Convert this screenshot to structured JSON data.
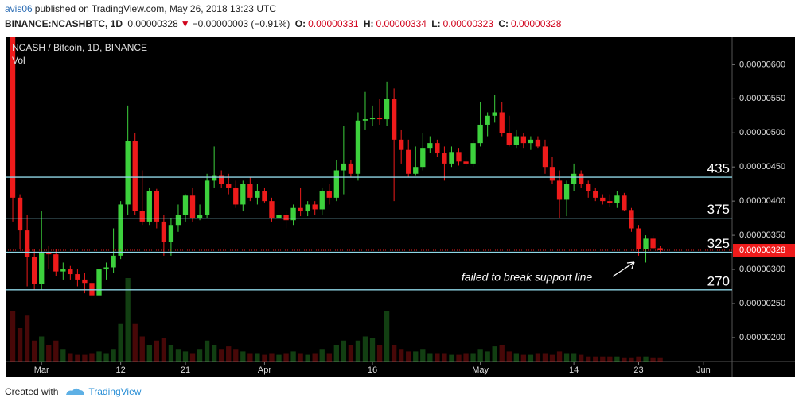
{
  "header": {
    "author": "avis06",
    "published": "published on TradingView.com, May 26, 2018 13:23 UTC",
    "symbol": "BINANCE:NCASHBTC, 1D",
    "last": "0.00000328",
    "arrow": "▼",
    "change": "−0.00000003 (−0.91%)",
    "open_label": "O:",
    "open": "0.00000331",
    "high_label": "H:",
    "high": "0.00000334",
    "low_label": "L:",
    "low": "0.00000323",
    "close_label": "C:",
    "close": "0.00000328"
  },
  "footer": {
    "created": "Created with",
    "brand": "TradingView"
  },
  "chart_data": {
    "type": "candlestick",
    "title": "NCASH / Bitcoin, 1D, BINANCE",
    "volume_label": "Vol",
    "last_price_label": "0.00000328",
    "annotation": "failed to break support line",
    "up_color": "#3dd13d",
    "down_color": "#ee1b1b",
    "level_color": "#8fd6e6",
    "grid": false,
    "ylim": [
      1.65e-06,
      6.4e-06
    ],
    "yticks": [
      {
        "value": 2e-06,
        "label": "0.00000200"
      },
      {
        "value": 2.5e-06,
        "label": "0.00000250"
      },
      {
        "value": 3e-06,
        "label": "0.00000300"
      },
      {
        "value": 3.5e-06,
        "label": "0.00000350"
      },
      {
        "value": 4e-06,
        "label": "0.00000400"
      },
      {
        "value": 4.5e-06,
        "label": "0.00000450"
      },
      {
        "value": 5e-06,
        "label": "0.00000500"
      },
      {
        "value": 5.5e-06,
        "label": "0.00000550"
      },
      {
        "value": 6e-06,
        "label": "0.00000600"
      }
    ],
    "xlim": [
      "2018-02-24",
      "2018-06-05"
    ],
    "xticks": [
      {
        "value": "2018-03-01",
        "label": "Mar"
      },
      {
        "value": "2018-03-12",
        "label": "12"
      },
      {
        "value": "2018-03-21",
        "label": "21"
      },
      {
        "value": "2018-04-01",
        "label": "Apr"
      },
      {
        "value": "2018-04-16",
        "label": "16"
      },
      {
        "value": "2018-05-01",
        "label": "May"
      },
      {
        "value": "2018-05-14",
        "label": "14"
      },
      {
        "value": "2018-05-23",
        "label": "23"
      },
      {
        "value": "2018-06-01",
        "label": "Jun"
      }
    ],
    "levels": [
      {
        "value": 4.35e-06,
        "label": "435"
      },
      {
        "value": 3.75e-06,
        "label": "375"
      },
      {
        "value": 3.25e-06,
        "label": "325"
      },
      {
        "value": 2.7e-06,
        "label": "270"
      }
    ],
    "candles": [
      {
        "date": "2018-02-25",
        "open": 6.4e-06,
        "high": 6.4e-06,
        "low": 3.7e-06,
        "close": 4.05e-06,
        "volume": 60
      },
      {
        "date": "2018-02-26",
        "open": 4.05e-06,
        "high": 4.1e-06,
        "low": 3.3e-06,
        "close": 3.57e-06,
        "volume": 40
      },
      {
        "date": "2018-02-27",
        "open": 3.57e-06,
        "high": 3.8e-06,
        "low": 2.75e-06,
        "close": 3.18e-06,
        "volume": 55
      },
      {
        "date": "2018-02-28",
        "open": 3.18e-06,
        "high": 3.3e-06,
        "low": 2.7e-06,
        "close": 2.78e-06,
        "volume": 25
      },
      {
        "date": "2018-03-01",
        "open": 2.78e-06,
        "high": 3.85e-06,
        "low": 2.7e-06,
        "close": 3.25e-06,
        "volume": 30
      },
      {
        "date": "2018-03-02",
        "open": 3.25e-06,
        "high": 3.35e-06,
        "low": 3e-06,
        "close": 3.22e-06,
        "volume": 20
      },
      {
        "date": "2018-03-03",
        "open": 3.22e-06,
        "high": 3.3e-06,
        "low": 2.9e-06,
        "close": 2.97e-06,
        "volume": 25
      },
      {
        "date": "2018-03-04",
        "open": 2.97e-06,
        "high": 3.1e-06,
        "low": 2.85e-06,
        "close": 3e-06,
        "volume": 15
      },
      {
        "date": "2018-03-05",
        "open": 3e-06,
        "high": 3.05e-06,
        "low": 2.85e-06,
        "close": 2.93e-06,
        "volume": 10
      },
      {
        "date": "2018-03-06",
        "open": 2.93e-06,
        "high": 3e-06,
        "low": 2.75e-06,
        "close": 2.85e-06,
        "volume": 8
      },
      {
        "date": "2018-03-07",
        "open": 2.85e-06,
        "high": 2.95e-06,
        "low": 2.65e-06,
        "close": 2.8e-06,
        "volume": 8
      },
      {
        "date": "2018-03-08",
        "open": 2.8e-06,
        "high": 2.9e-06,
        "low": 2.55e-06,
        "close": 2.62e-06,
        "volume": 10
      },
      {
        "date": "2018-03-09",
        "open": 2.62e-06,
        "high": 3.05e-06,
        "low": 2.45e-06,
        "close": 3e-06,
        "volume": 12
      },
      {
        "date": "2018-03-10",
        "open": 3e-06,
        "high": 3.1e-06,
        "low": 2.85e-06,
        "close": 3.03e-06,
        "volume": 10
      },
      {
        "date": "2018-03-11",
        "open": 3.03e-06,
        "high": 3.6e-06,
        "low": 2.95e-06,
        "close": 3.2e-06,
        "volume": 15
      },
      {
        "date": "2018-03-12",
        "open": 3.2e-06,
        "high": 4e-06,
        "low": 3.15e-06,
        "close": 3.95e-06,
        "volume": 45
      },
      {
        "date": "2018-03-13",
        "open": 3.95e-06,
        "high": 5.4e-06,
        "low": 3.8e-06,
        "close": 4.88e-06,
        "volume": 100
      },
      {
        "date": "2018-03-14",
        "open": 4.88e-06,
        "high": 5e-06,
        "low": 3.8e-06,
        "close": 3.86e-06,
        "volume": 45
      },
      {
        "date": "2018-03-15",
        "open": 3.86e-06,
        "high": 4.45e-06,
        "low": 3.65e-06,
        "close": 3.7e-06,
        "volume": 30
      },
      {
        "date": "2018-03-16",
        "open": 3.7e-06,
        "high": 4.2e-06,
        "low": 3.65e-06,
        "close": 4.15e-06,
        "volume": 20
      },
      {
        "date": "2018-03-17",
        "open": 4.15e-06,
        "high": 4.18e-06,
        "low": 3.6e-06,
        "close": 3.7e-06,
        "volume": 25
      },
      {
        "date": "2018-03-18",
        "open": 3.7e-06,
        "high": 3.8e-06,
        "low": 3.2e-06,
        "close": 3.4e-06,
        "volume": 28
      },
      {
        "date": "2018-03-19",
        "open": 3.4e-06,
        "high": 3.75e-06,
        "low": 3.2e-06,
        "close": 3.65e-06,
        "volume": 20
      },
      {
        "date": "2018-03-20",
        "open": 3.65e-06,
        "high": 3.95e-06,
        "low": 3.55e-06,
        "close": 3.8e-06,
        "volume": 15
      },
      {
        "date": "2018-03-21",
        "open": 3.8e-06,
        "high": 4.1e-06,
        "low": 3.7e-06,
        "close": 4.08e-06,
        "volume": 12
      },
      {
        "date": "2018-03-22",
        "open": 4.08e-06,
        "high": 4.2e-06,
        "low": 3.7e-06,
        "close": 3.75e-06,
        "volume": 10
      },
      {
        "date": "2018-03-23",
        "open": 3.75e-06,
        "high": 3.95e-06,
        "low": 3.72e-06,
        "close": 3.8e-06,
        "volume": 15
      },
      {
        "date": "2018-03-24",
        "open": 3.8e-06,
        "high": 4.4e-06,
        "low": 3.75e-06,
        "close": 4.3e-06,
        "volume": 25
      },
      {
        "date": "2018-03-25",
        "open": 4.3e-06,
        "high": 4.8e-06,
        "low": 4.2e-06,
        "close": 4.38e-06,
        "volume": 20
      },
      {
        "date": "2018-03-26",
        "open": 4.38e-06,
        "high": 4.45e-06,
        "low": 4.2e-06,
        "close": 4.25e-06,
        "volume": 15
      },
      {
        "date": "2018-03-27",
        "open": 4.25e-06,
        "high": 4.4e-06,
        "low": 4.1e-06,
        "close": 4.2e-06,
        "volume": 18
      },
      {
        "date": "2018-03-28",
        "open": 4.2e-06,
        "high": 4.3e-06,
        "low": 3.9e-06,
        "close": 3.95e-06,
        "volume": 15
      },
      {
        "date": "2018-03-29",
        "open": 3.95e-06,
        "high": 4.3e-06,
        "low": 3.85e-06,
        "close": 4.25e-06,
        "volume": 12
      },
      {
        "date": "2018-03-30",
        "open": 4.25e-06,
        "high": 4.35e-06,
        "low": 4e-06,
        "close": 4.05e-06,
        "volume": 10
      },
      {
        "date": "2018-03-31",
        "open": 4.05e-06,
        "high": 4.25e-06,
        "low": 3.95e-06,
        "close": 4.15e-06,
        "volume": 10
      },
      {
        "date": "2018-04-01",
        "open": 4.15e-06,
        "high": 4.2e-06,
        "low": 3.98e-06,
        "close": 4e-06,
        "volume": 8
      },
      {
        "date": "2018-04-02",
        "open": 4e-06,
        "high": 4.05e-06,
        "low": 3.7e-06,
        "close": 3.75e-06,
        "volume": 10
      },
      {
        "date": "2018-04-03",
        "open": 3.75e-06,
        "high": 3.9e-06,
        "low": 3.7e-06,
        "close": 3.8e-06,
        "volume": 8
      },
      {
        "date": "2018-04-04",
        "open": 3.8e-06,
        "high": 3.85e-06,
        "low": 3.6e-06,
        "close": 3.72e-06,
        "volume": 10
      },
      {
        "date": "2018-04-05",
        "open": 3.72e-06,
        "high": 3.95e-06,
        "low": 3.65e-06,
        "close": 3.9e-06,
        "volume": 12
      },
      {
        "date": "2018-04-06",
        "open": 3.9e-06,
        "high": 4.2e-06,
        "low": 3.78e-06,
        "close": 3.85e-06,
        "volume": 10
      },
      {
        "date": "2018-04-07",
        "open": 3.85e-06,
        "high": 4e-06,
        "low": 3.78e-06,
        "close": 3.95e-06,
        "volume": 8
      },
      {
        "date": "2018-04-08",
        "open": 3.95e-06,
        "high": 4e-06,
        "low": 3.8e-06,
        "close": 3.88e-06,
        "volume": 10
      },
      {
        "date": "2018-04-09",
        "open": 3.88e-06,
        "high": 4.2e-06,
        "low": 3.8e-06,
        "close": 4.15e-06,
        "volume": 15
      },
      {
        "date": "2018-04-10",
        "open": 4.15e-06,
        "high": 4.25e-06,
        "low": 3.95e-06,
        "close": 4.05e-06,
        "volume": 10
      },
      {
        "date": "2018-04-11",
        "open": 4.05e-06,
        "high": 4.6e-06,
        "low": 4e-06,
        "close": 4.45e-06,
        "volume": 20
      },
      {
        "date": "2018-04-12",
        "open": 4.45e-06,
        "high": 5.1e-06,
        "low": 4.1e-06,
        "close": 4.55e-06,
        "volume": 25
      },
      {
        "date": "2018-04-13",
        "open": 4.55e-06,
        "high": 4.6e-06,
        "low": 4.35e-06,
        "close": 4.4e-06,
        "volume": 20
      },
      {
        "date": "2018-04-14",
        "open": 4.4e-06,
        "high": 5.3e-06,
        "low": 4.3e-06,
        "close": 5.18e-06,
        "volume": 25
      },
      {
        "date": "2018-04-15",
        "open": 5.18e-06,
        "high": 5.6e-06,
        "low": 5.05e-06,
        "close": 5.2e-06,
        "volume": 30
      },
      {
        "date": "2018-04-16",
        "open": 5.2e-06,
        "high": 5.4e-06,
        "low": 5.1e-06,
        "close": 5.22e-06,
        "volume": 28
      },
      {
        "date": "2018-04-17",
        "open": 5.22e-06,
        "high": 5.5e-06,
        "low": 5.12e-06,
        "close": 5.2e-06,
        "volume": 20
      },
      {
        "date": "2018-04-18",
        "open": 5.2e-06,
        "high": 5.75e-06,
        "low": 5.1e-06,
        "close": 5.5e-06,
        "volume": 60
      },
      {
        "date": "2018-04-19",
        "open": 5.5e-06,
        "high": 5.65e-06,
        "low": 4e-06,
        "close": 4.9e-06,
        "volume": 20
      },
      {
        "date": "2018-04-20",
        "open": 4.9e-06,
        "high": 5.05e-06,
        "low": 4.55e-06,
        "close": 4.75e-06,
        "volume": 15
      },
      {
        "date": "2018-04-21",
        "open": 4.75e-06,
        "high": 4.9e-06,
        "low": 4.35e-06,
        "close": 4.4e-06,
        "volume": 12
      },
      {
        "date": "2018-04-22",
        "open": 4.4e-06,
        "high": 4.8e-06,
        "low": 4.38e-06,
        "close": 4.5e-06,
        "volume": 12
      },
      {
        "date": "2018-04-23",
        "open": 4.5e-06,
        "high": 5e-06,
        "low": 4.45e-06,
        "close": 4.78e-06,
        "volume": 15
      },
      {
        "date": "2018-04-24",
        "open": 4.78e-06,
        "high": 4.95e-06,
        "low": 4.7e-06,
        "close": 4.85e-06,
        "volume": 10
      },
      {
        "date": "2018-04-25",
        "open": 4.85e-06,
        "high": 4.9e-06,
        "low": 4.65e-06,
        "close": 4.7e-06,
        "volume": 10
      },
      {
        "date": "2018-04-26",
        "open": 4.7e-06,
        "high": 4.8e-06,
        "low": 4.3e-06,
        "close": 4.55e-06,
        "volume": 10
      },
      {
        "date": "2018-04-27",
        "open": 4.55e-06,
        "high": 4.8e-06,
        "low": 4.5e-06,
        "close": 4.72e-06,
        "volume": 8
      },
      {
        "date": "2018-04-28",
        "open": 4.72e-06,
        "high": 4.78e-06,
        "low": 4.52e-06,
        "close": 4.58e-06,
        "volume": 8
      },
      {
        "date": "2018-04-29",
        "open": 4.58e-06,
        "high": 4.65e-06,
        "low": 4.5e-06,
        "close": 4.55e-06,
        "volume": 10
      },
      {
        "date": "2018-04-30",
        "open": 4.55e-06,
        "high": 4.9e-06,
        "low": 4.5e-06,
        "close": 4.85e-06,
        "volume": 10
      },
      {
        "date": "2018-05-01",
        "open": 4.85e-06,
        "high": 5.45e-06,
        "low": 4.8e-06,
        "close": 5.12e-06,
        "volume": 15
      },
      {
        "date": "2018-05-02",
        "open": 5.12e-06,
        "high": 5.3e-06,
        "low": 4.95e-06,
        "close": 5.25e-06,
        "volume": 12
      },
      {
        "date": "2018-05-03",
        "open": 5.25e-06,
        "high": 5.55e-06,
        "low": 5.15e-06,
        "close": 5.3e-06,
        "volume": 18
      },
      {
        "date": "2018-05-04",
        "open": 5.3e-06,
        "high": 5.45e-06,
        "low": 4.95e-06,
        "close": 5e-06,
        "volume": 20
      },
      {
        "date": "2018-05-05",
        "open": 5e-06,
        "high": 5.25e-06,
        "low": 4.8e-06,
        "close": 4.82e-06,
        "volume": 12
      },
      {
        "date": "2018-05-06",
        "open": 4.82e-06,
        "high": 5.05e-06,
        "low": 4.78e-06,
        "close": 4.95e-06,
        "volume": 10
      },
      {
        "date": "2018-05-07",
        "open": 4.95e-06,
        "high": 5e-06,
        "low": 4.78e-06,
        "close": 4.85e-06,
        "volume": 8
      },
      {
        "date": "2018-05-08",
        "open": 4.85e-06,
        "high": 4.95e-06,
        "low": 4.75e-06,
        "close": 4.9e-06,
        "volume": 8
      },
      {
        "date": "2018-05-09",
        "open": 4.9e-06,
        "high": 4.95e-06,
        "low": 4.78e-06,
        "close": 4.8e-06,
        "volume": 10
      },
      {
        "date": "2018-05-10",
        "open": 4.8e-06,
        "high": 4.9e-06,
        "low": 4.4e-06,
        "close": 4.5e-06,
        "volume": 10
      },
      {
        "date": "2018-05-11",
        "open": 4.5e-06,
        "high": 4.65e-06,
        "low": 4.25e-06,
        "close": 4.3e-06,
        "volume": 8
      },
      {
        "date": "2018-05-12",
        "open": 4.3e-06,
        "high": 4.45e-06,
        "low": 3.75e-06,
        "close": 4.02e-06,
        "volume": 12
      },
      {
        "date": "2018-05-13",
        "open": 4.02e-06,
        "high": 4.3e-06,
        "low": 3.78e-06,
        "close": 4.25e-06,
        "volume": 10
      },
      {
        "date": "2018-05-14",
        "open": 4.25e-06,
        "high": 4.55e-06,
        "low": 4.15e-06,
        "close": 4.4e-06,
        "volume": 10
      },
      {
        "date": "2018-05-15",
        "open": 4.4e-06,
        "high": 4.45e-06,
        "low": 4.2e-06,
        "close": 4.25e-06,
        "volume": 8
      },
      {
        "date": "2018-05-16",
        "open": 4.25e-06,
        "high": 4.3e-06,
        "low": 4.05e-06,
        "close": 4.15e-06,
        "volume": 6
      },
      {
        "date": "2018-05-17",
        "open": 4.15e-06,
        "high": 4.2e-06,
        "low": 4e-06,
        "close": 4.05e-06,
        "volume": 6
      },
      {
        "date": "2018-05-18",
        "open": 4.05e-06,
        "high": 4.1e-06,
        "low": 3.95e-06,
        "close": 4e-06,
        "volume": 6
      },
      {
        "date": "2018-05-19",
        "open": 4e-06,
        "high": 4.1e-06,
        "low": 3.92e-06,
        "close": 3.97e-06,
        "volume": 6
      },
      {
        "date": "2018-05-20",
        "open": 3.97e-06,
        "high": 4.15e-06,
        "low": 3.9e-06,
        "close": 4.08e-06,
        "volume": 6
      },
      {
        "date": "2018-05-21",
        "open": 4.08e-06,
        "high": 4.12e-06,
        "low": 3.85e-06,
        "close": 3.87e-06,
        "volume": 5
      },
      {
        "date": "2018-05-22",
        "open": 3.87e-06,
        "high": 3.9e-06,
        "low": 3.55e-06,
        "close": 3.6e-06,
        "volume": 5
      },
      {
        "date": "2018-05-23",
        "open": 3.6e-06,
        "high": 3.65e-06,
        "low": 3.2e-06,
        "close": 3.3e-06,
        "volume": 6
      },
      {
        "date": "2018-05-24",
        "open": 3.3e-06,
        "high": 3.5e-06,
        "low": 3.1e-06,
        "close": 3.45e-06,
        "volume": 6
      },
      {
        "date": "2018-05-25",
        "open": 3.45e-06,
        "high": 3.5e-06,
        "low": 3.27e-06,
        "close": 3.31e-06,
        "volume": 5
      },
      {
        "date": "2018-05-26",
        "open": 3.31e-06,
        "high": 3.34e-06,
        "low": 3.23e-06,
        "close": 3.28e-06,
        "volume": 5
      }
    ]
  }
}
